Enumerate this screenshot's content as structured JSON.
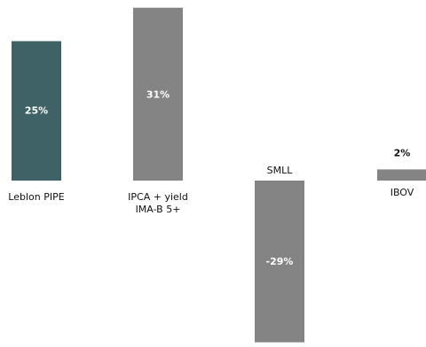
{
  "chart_data": {
    "type": "bar",
    "categories": [
      [
        "Leblon PIPE"
      ],
      [
        "IPCA + yield",
        "IMA-B 5+"
      ],
      [
        "SMLL"
      ],
      [
        "IBOV"
      ]
    ],
    "values": [
      25,
      31,
      -29,
      2
    ],
    "value_labels": [
      "25%",
      "31%",
      "-29%",
      "2%"
    ],
    "colors": [
      "#3e6265",
      "#848484",
      "#848484",
      "#848484"
    ],
    "title": "",
    "xlabel": "",
    "ylabel": "",
    "ylim": [
      -32,
      32
    ]
  }
}
